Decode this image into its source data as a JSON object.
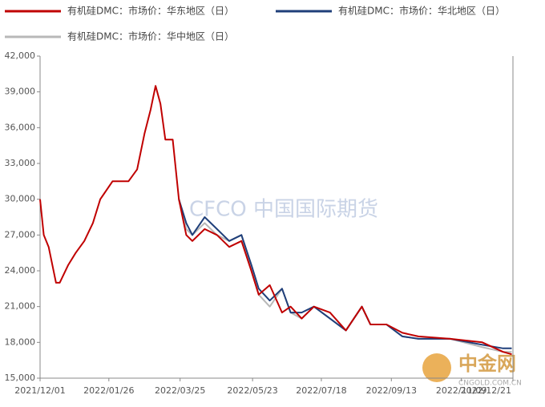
{
  "chart_data": {
    "type": "line",
    "x": [
      "2021/12/01",
      "2021/12/04",
      "2021/12/08",
      "2021/12/14",
      "2021/12/17",
      "2021/12/24",
      "2021/12/30",
      "2022/01/06",
      "2022/01/13",
      "2022/01/19",
      "2022/01/29",
      "2022/02/11",
      "2022/02/18",
      "2022/02/24",
      "2022/03/01",
      "2022/03/05",
      "2022/03/09",
      "2022/03/13",
      "2022/03/19",
      "2022/03/24",
      "2022/03/30",
      "2022/04/04",
      "2022/04/14",
      "2022/04/24",
      "2022/05/04",
      "2022/05/14",
      "2022/05/22",
      "2022/05/28",
      "2022/06/06",
      "2022/06/16",
      "2022/06/23",
      "2022/07/02",
      "2022/07/12",
      "2022/07/25",
      "2022/08/07",
      "2022/08/20",
      "2022/08/27",
      "2022/09/09",
      "2022/09/22",
      "2022/10/05",
      "2022/10/31",
      "2022/11/26",
      "2022/12/13",
      "2022/12/20"
    ],
    "series": [
      {
        "name": "有机硅DMC：市场价：华东地区（日）",
        "color": "#c00000",
        "values": [
          30000,
          27000,
          26000,
          23000,
          23000,
          24500,
          25500,
          26500,
          28000,
          30000,
          31500,
          31500,
          32500,
          35500,
          37500,
          39500,
          38000,
          35000,
          35000,
          30000,
          27000,
          26500,
          27500,
          27000,
          26000,
          26500,
          24000,
          22000,
          22800,
          20500,
          21000,
          20000,
          21000,
          20500,
          19000,
          21000,
          19500,
          19500,
          18800,
          18500,
          18300,
          18000,
          17200,
          17000
        ]
      },
      {
        "name": "有机硅DMC：市场价：华北地区（日）",
        "color": "#1f3f7a",
        "values": [
          null,
          null,
          null,
          null,
          null,
          null,
          null,
          null,
          null,
          null,
          null,
          null,
          null,
          null,
          null,
          null,
          null,
          null,
          null,
          30000,
          28000,
          27000,
          28500,
          27500,
          26500,
          27000,
          24500,
          22500,
          21500,
          22500,
          20500,
          20500,
          21000,
          20000,
          19000,
          21000,
          19500,
          19500,
          18500,
          18300,
          18300,
          17800,
          17500,
          17500
        ]
      },
      {
        "name": "有机硅DMC：市场价：华中地区（日）",
        "color": "#b8b8b8",
        "values": [
          null,
          null,
          null,
          null,
          null,
          null,
          null,
          null,
          null,
          null,
          null,
          null,
          null,
          null,
          null,
          null,
          null,
          null,
          null,
          30000,
          27500,
          27000,
          28000,
          27000,
          26500,
          27000,
          24000,
          22000,
          21000,
          22500,
          20500,
          20000,
          21000,
          20000,
          19000,
          21000,
          19500,
          19500,
          18500,
          18300,
          18300,
          17600,
          17200,
          17200
        ]
      }
    ],
    "xlim": [
      "2021/12/01",
      "2022/12/21"
    ],
    "xticks": [
      "2021/12/01",
      "2022/01/26",
      "2022/03/25",
      "2022/05/23",
      "2022/07/18",
      "2022/09/13",
      "2022/11/09",
      "2022/12/21"
    ],
    "ylim": [
      15000,
      42000
    ],
    "yticks": [
      {
        "value": 15000,
        "label": "15,000"
      },
      {
        "value": 18000,
        "label": "18,000"
      },
      {
        "value": 21000,
        "label": "21,000"
      },
      {
        "value": 24000,
        "label": "24,000"
      },
      {
        "value": 27000,
        "label": "27,000"
      },
      {
        "value": 30000,
        "label": "30,000"
      },
      {
        "value": 33000,
        "label": "33,000"
      },
      {
        "value": 36000,
        "label": "36,000"
      },
      {
        "value": 39000,
        "label": "39,000"
      },
      {
        "value": 42000,
        "label": "42,000"
      }
    ],
    "grid": false,
    "watermarks": [
      "CFCO 中国国际期货",
      "中金网",
      "CNGOLD.COM.CN"
    ]
  }
}
